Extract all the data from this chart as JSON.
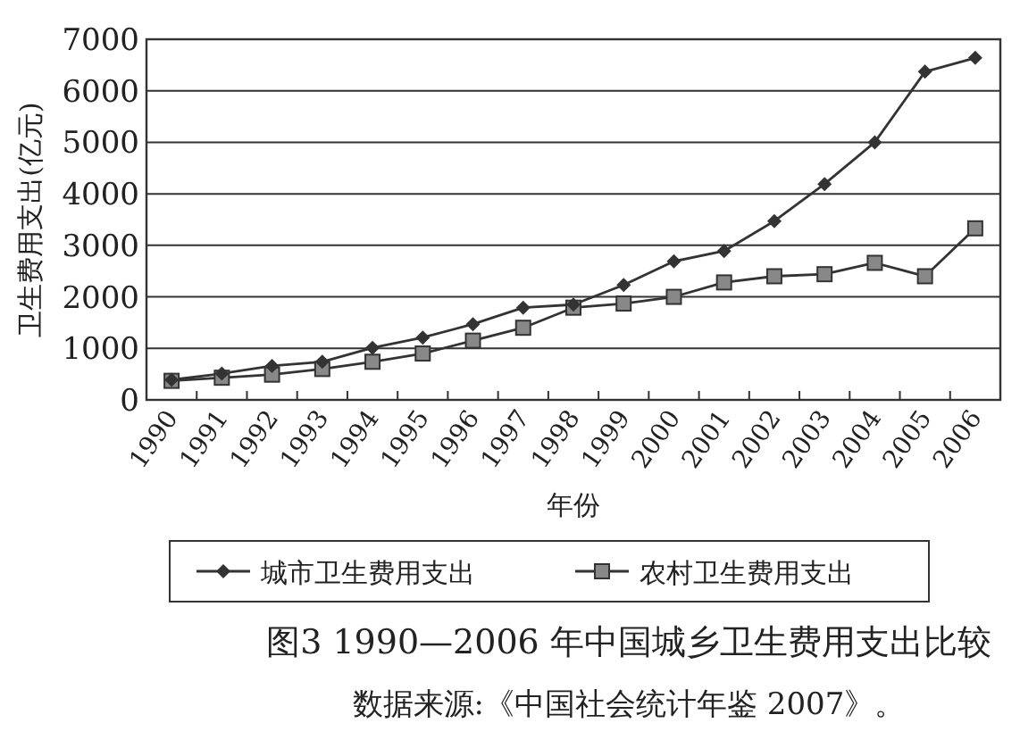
{
  "chart_data": {
    "type": "line",
    "title": "图3  1990—2006 年中国城乡卫生费用支出比较",
    "annotations": [
      "数据来源:《中国社会统计年鉴 2007》。"
    ],
    "xlabel": "年份",
    "ylabel": "卫生费用支出(亿元)",
    "categories": [
      "1990",
      "1991",
      "1992",
      "1993",
      "1994",
      "1995",
      "1996",
      "1997",
      "1998",
      "1999",
      "2000",
      "2001",
      "2002",
      "2003",
      "2004",
      "2005",
      "2006"
    ],
    "series": [
      {
        "name": "城市卫生费用支出",
        "color": "#333333",
        "marker": "diamond",
        "values": [
          390,
          510,
          660,
          740,
          1010,
          1210,
          1470,
          1790,
          1850,
          2230,
          2690,
          2890,
          3470,
          4190,
          5000,
          6370,
          6640
        ]
      },
      {
        "name": "农村卫生费用支出",
        "color": "#333333",
        "marker": "square",
        "values": [
          370,
          430,
          490,
          600,
          740,
          900,
          1150,
          1400,
          1790,
          1870,
          2000,
          2280,
          2400,
          2440,
          2660,
          2400,
          3330
        ]
      }
    ],
    "ylim": [
      0,
      7000
    ],
    "yticks": [
      0,
      1000,
      2000,
      3000,
      4000,
      5000,
      6000,
      7000
    ],
    "grid": "y",
    "legend": "bottom",
    "line_style": "solid"
  }
}
